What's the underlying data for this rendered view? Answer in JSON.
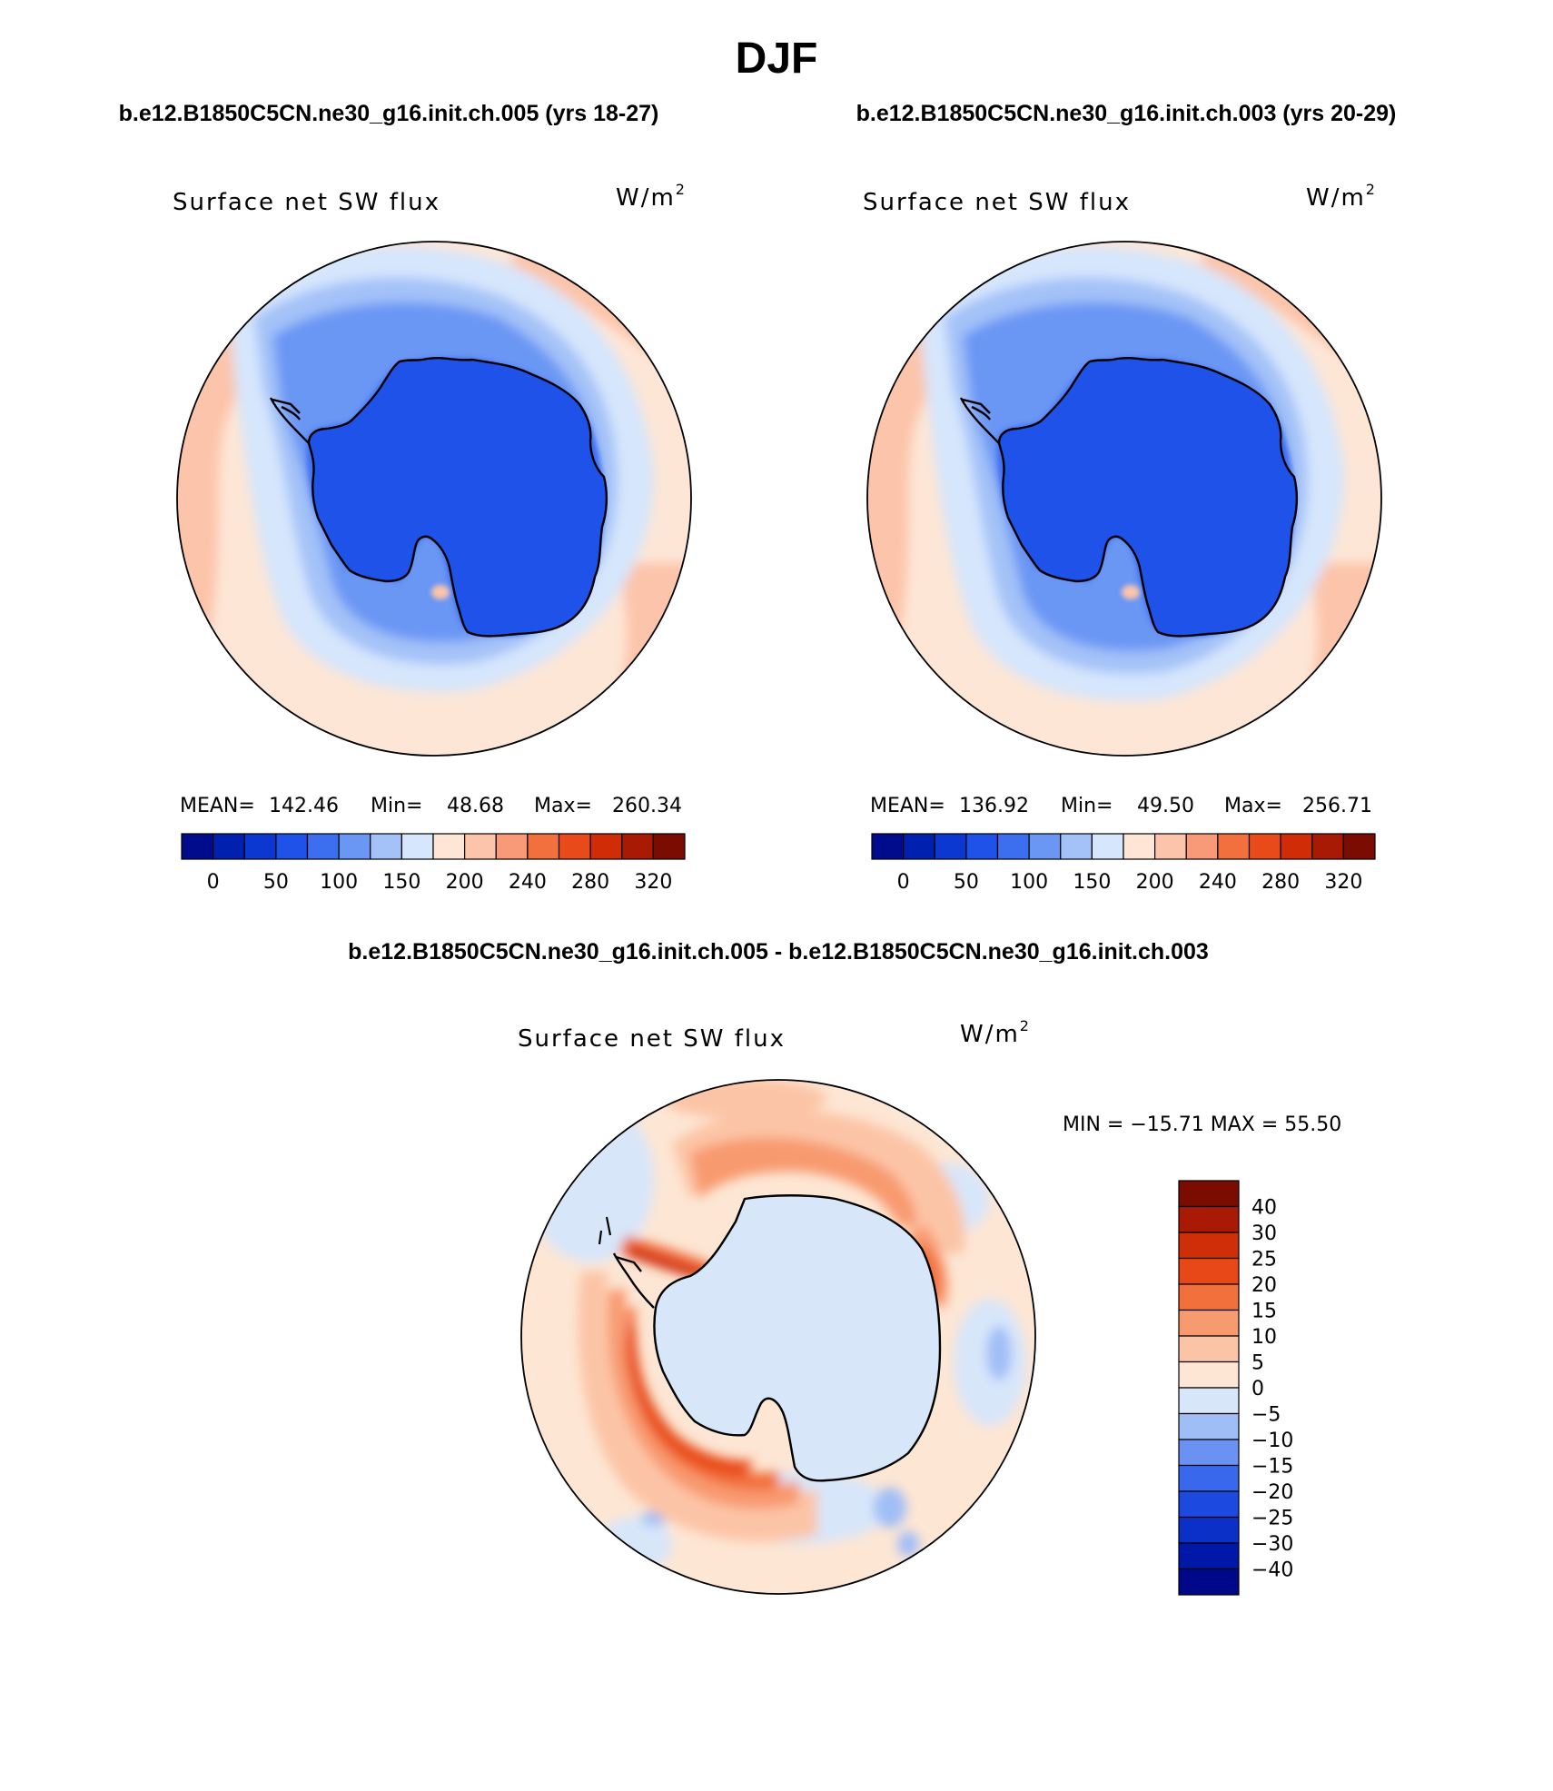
{
  "page": {
    "season": "DJF",
    "header_left": "b.e12.B1850C5CN.ne30_g16.init.ch.005 (yrs 18-27)",
    "header_right": "b.e12.B1850C5CN.ne30_g16.init.ch.003 (yrs 20-29)",
    "diff_header": "b.e12.B1850C5CN.ne30_g16.init.ch.005 - b.e12.B1850C5CN.ne30_g16.init.ch.003"
  },
  "panels": [
    {
      "variable": "Surface net SW flux",
      "units": "W/m",
      "units_sup": "2",
      "stats": {
        "mean_label": "MEAN=",
        "mean": "142.46",
        "min_label": "Min=",
        "min": "48.68",
        "max_label": "Max=",
        "max": "260.34"
      }
    },
    {
      "variable": "Surface net SW flux",
      "units": "W/m",
      "units_sup": "2",
      "stats": {
        "mean_label": "MEAN=",
        "mean": "136.92",
        "min_label": "Min=",
        "min": "49.50",
        "max_label": "Max=",
        "max": "256.71"
      }
    }
  ],
  "diff_panel": {
    "variable": "Surface net SW flux",
    "units": "W/m",
    "units_sup": "2",
    "minmax": "MIN = −15.71  MAX =  55.50"
  },
  "colorbars": {
    "abs": {
      "colors": [
        "#000c8b",
        "#0020b0",
        "#0a38d0",
        "#1e52e8",
        "#3c6ef0",
        "#6a96f4",
        "#a4c2f8",
        "#d6e6fc",
        "#fde6d6",
        "#fcc4aa",
        "#f89a78",
        "#f2703e",
        "#e84a1a",
        "#d02c08",
        "#a81a04",
        "#7a0c02"
      ],
      "tick_labels": [
        "0",
        "50",
        "100",
        "150",
        "200",
        "240",
        "280",
        "320"
      ]
    },
    "diff": {
      "colors": [
        "#00088a",
        "#0018a8",
        "#0a30c8",
        "#1c4ae0",
        "#3a68ec",
        "#6a92f2",
        "#a0bef6",
        "#d8e6fa",
        "#fde6d4",
        "#fcc4a6",
        "#f89a70",
        "#f2703c",
        "#e84818",
        "#d02e08",
        "#a81a04",
        "#7a0c02"
      ],
      "tick_labels": [
        "−40",
        "−30",
        "−25",
        "−20",
        "−15",
        "−10",
        "−5",
        "0",
        "5",
        "10",
        "15",
        "20",
        "25",
        "30",
        "40"
      ]
    }
  }
}
